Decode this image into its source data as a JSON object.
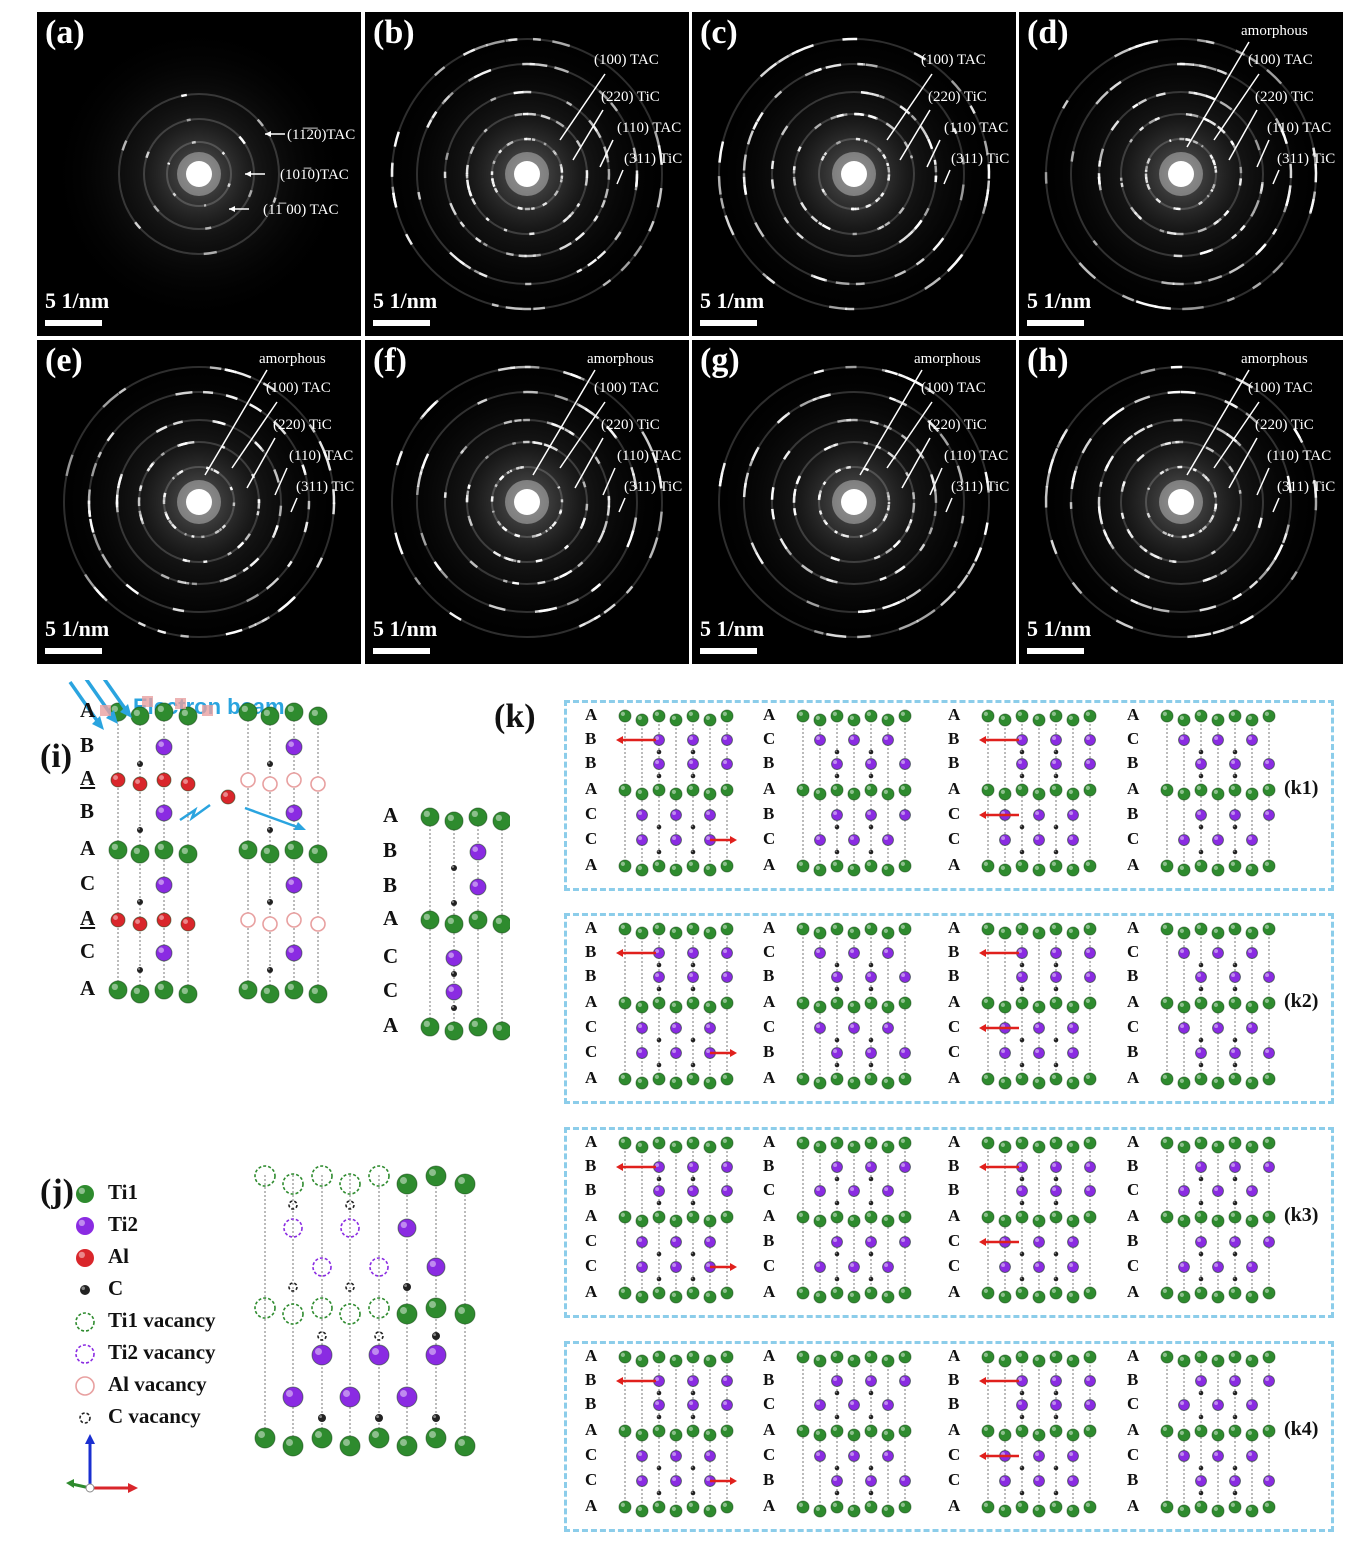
{
  "saed_panels": [
    {
      "label": "(a)",
      "scale": "5 1/nm",
      "annotations": [
        "(11̅2̅0)TAC",
        "(101̅0)TAC",
        "(11̅ 00) TAC"
      ]
    },
    {
      "label": "(b)",
      "scale": "5 1/nm",
      "annotations": [
        "(100) TAC",
        "(220) TiC",
        "(110) TAC",
        "(311) TiC"
      ]
    },
    {
      "label": "(c)",
      "scale": "5 1/nm",
      "annotations": [
        "(100) TAC",
        "(220) TiC",
        "(110) TAC",
        "(311) TiC"
      ]
    },
    {
      "label": "(d)",
      "scale": "5 1/nm",
      "annotations": [
        "amorphous",
        "(100) TAC",
        "(220) TiC",
        "(110) TAC",
        "(311) TiC"
      ]
    },
    {
      "label": "(e)",
      "scale": "5 1/nm",
      "annotations": [
        "amorphous",
        "(100) TAC",
        "(220) TiC",
        "(110) TAC",
        "(311) TiC"
      ]
    },
    {
      "label": "(f)",
      "scale": "5 1/nm",
      "annotations": [
        "amorphous",
        "(100) TAC",
        "(220) TiC",
        "(110) TAC",
        "(311) TiC"
      ]
    },
    {
      "label": "(g)",
      "scale": "5 1/nm",
      "annotations": [
        "amorphous",
        "(100) TAC",
        "(220) TiC",
        "(110) TAC",
        "(311) TiC"
      ]
    },
    {
      "label": "(h)",
      "scale": "5 1/nm",
      "annotations": [
        "amorphous",
        "(100) TAC",
        "(220) TiC",
        "(110) TAC",
        "(311) TiC"
      ]
    }
  ],
  "panel_i": {
    "label": "(i)",
    "beam_label": "Electron beam",
    "stack_left": [
      "A",
      "B",
      "A",
      "B",
      "A",
      "C",
      "A",
      "C",
      "A"
    ],
    "stack_right": [
      "A",
      "B",
      "B",
      "A",
      "C",
      "C",
      "A"
    ]
  },
  "panel_j": {
    "label": "(j)",
    "legend": [
      {
        "name": "Ti1",
        "color": "#2e8b2e",
        "style": "solid"
      },
      {
        "name": "Ti2",
        "color": "#8a2be2",
        "style": "solid"
      },
      {
        "name": "Al",
        "color": "#d9262b",
        "style": "solid"
      },
      {
        "name": "C",
        "color": "#222222",
        "style": "solid"
      },
      {
        "name": "Ti1 vacancy",
        "color": "#2e8b2e",
        "style": "dashed"
      },
      {
        "name": "Ti2 vacancy",
        "color": "#8a2be2",
        "style": "dashed"
      },
      {
        "name": "Al vacancy",
        "color": "#e8a0a0",
        "style": "outline"
      },
      {
        "name": "C vacancy",
        "color": "#222222",
        "style": "dashed"
      }
    ]
  },
  "panel_k": {
    "label": "(k)",
    "rows": [
      {
        "label": "(k1)",
        "columns": [
          [
            "A",
            "B",
            "B",
            "A",
            "C",
            "C",
            "A"
          ],
          [
            "A",
            "C",
            "B",
            "A",
            "B",
            "C",
            "A"
          ],
          [
            "A",
            "B",
            "B",
            "A",
            "C",
            "C",
            "A"
          ],
          [
            "A",
            "C",
            "B",
            "A",
            "B",
            "C",
            "A"
          ]
        ]
      },
      {
        "label": "(k2)",
        "columns": [
          [
            "A",
            "B",
            "B",
            "A",
            "C",
            "C",
            "A"
          ],
          [
            "A",
            "C",
            "B",
            "A",
            "C",
            "B",
            "A"
          ],
          [
            "A",
            "B",
            "B",
            "A",
            "C",
            "C",
            "A"
          ],
          [
            "A",
            "C",
            "B",
            "A",
            "C",
            "B",
            "A"
          ]
        ]
      },
      {
        "label": "(k3)",
        "columns": [
          [
            "A",
            "B",
            "B",
            "A",
            "C",
            "C",
            "A"
          ],
          [
            "A",
            "B",
            "C",
            "A",
            "B",
            "C",
            "A"
          ],
          [
            "A",
            "B",
            "B",
            "A",
            "C",
            "C",
            "A"
          ],
          [
            "A",
            "B",
            "C",
            "A",
            "B",
            "C",
            "A"
          ]
        ]
      },
      {
        "label": "(k4)",
        "columns": [
          [
            "A",
            "B",
            "B",
            "A",
            "C",
            "C",
            "A"
          ],
          [
            "A",
            "B",
            "C",
            "A",
            "C",
            "B",
            "A"
          ],
          [
            "A",
            "B",
            "B",
            "A",
            "C",
            "C",
            "A"
          ],
          [
            "A",
            "B",
            "C",
            "A",
            "C",
            "B",
            "A"
          ]
        ]
      }
    ]
  },
  "colors": {
    "ti1": "#2e8b2e",
    "ti2": "#8a2be2",
    "al": "#d9262b",
    "c": "#222222",
    "beam": "#2aa4df",
    "shift_arrow": "#e0201c",
    "box": "#8ccdea"
  }
}
